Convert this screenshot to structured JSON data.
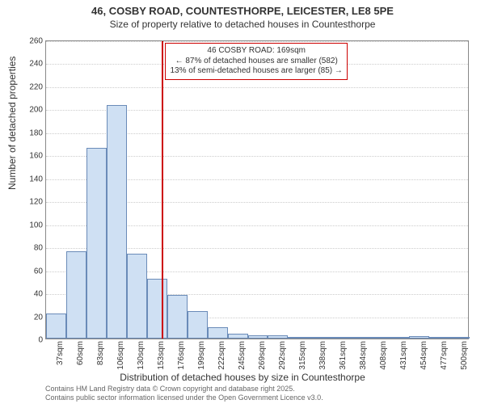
{
  "header": {
    "title": "46, COSBY ROAD, COUNTESTHORPE, LEICESTER, LE8 5PE",
    "subtitle": "Size of property relative to detached houses in Countesthorpe"
  },
  "chart": {
    "type": "histogram",
    "background_color": "#ffffff",
    "border_color": "#888888",
    "grid_color": "#cccccc",
    "bar_fill": "#cfe0f3",
    "bar_border": "#6a8bb8",
    "marker_color": "#cc0000",
    "annotation_border": "#cc0000",
    "x_axis_label": "Distribution of detached houses by size in Countesthorpe",
    "y_axis_label": "Number of detached properties",
    "ylim": [
      0,
      260
    ],
    "ytick_step": 20,
    "x_categories": [
      "37sqm",
      "60sqm",
      "83sqm",
      "106sqm",
      "130sqm",
      "153sqm",
      "176sqm",
      "199sqm",
      "222sqm",
      "245sqm",
      "269sqm",
      "292sqm",
      "315sqm",
      "338sqm",
      "361sqm",
      "384sqm",
      "408sqm",
      "431sqm",
      "454sqm",
      "477sqm",
      "500sqm"
    ],
    "values": [
      22,
      76,
      166,
      203,
      74,
      52,
      38,
      24,
      10,
      4,
      3,
      3,
      0,
      1,
      0,
      1,
      0,
      0,
      2,
      0,
      1
    ],
    "marker_index": 5.75,
    "annotation": {
      "line1": "46 COSBY ROAD: 169sqm",
      "line2": "← 87% of detached houses are smaller (582)",
      "line3": "13% of semi-detached houses are larger (85) →"
    },
    "label_fontsize": 12,
    "tick_fontsize": 10,
    "title_fontsize": 13
  },
  "footer": {
    "line1": "Contains HM Land Registry data © Crown copyright and database right 2025.",
    "line2": "Contains public sector information licensed under the Open Government Licence v3.0."
  }
}
